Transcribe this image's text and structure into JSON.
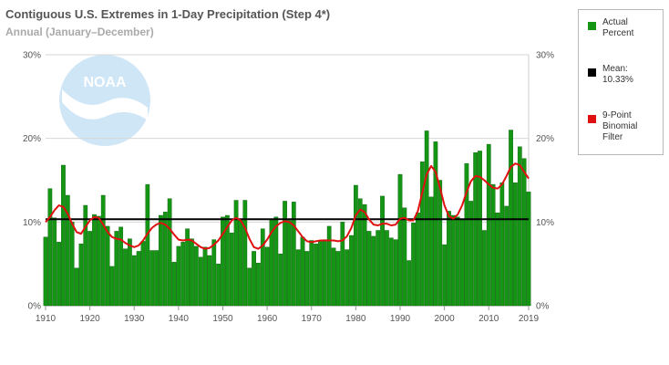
{
  "header": {
    "title": "Contiguous U.S. Extremes in 1-Day Precipitation (Step 4*)",
    "subtitle": "Annual (January–December)"
  },
  "logo_text": "NOAA",
  "legend": {
    "actual_label": "Actual\nPercent",
    "mean_label": "Mean:\n10.33%",
    "filter_label": "9-Point\nBinomial\nFilter"
  },
  "colors": {
    "bar": "#149614",
    "bar_stroke": "#0b5c0b",
    "mean": "#000000",
    "filter": "#e01010",
    "grid": "#d7d7d7"
  },
  "chart_data": {
    "type": "bar",
    "x_start": 1910,
    "x_end": 2019,
    "x_tick_labels": [
      "1910",
      "1920",
      "1930",
      "1940",
      "1950",
      "1960",
      "1970",
      "1980",
      "1990",
      "2000",
      "2010",
      "2019"
    ],
    "y_tick_labels": [
      "0%",
      "10%",
      "20%",
      "30%"
    ],
    "ylim": [
      0,
      30
    ],
    "grid": true,
    "legend_position": "right",
    "series": [
      {
        "name": "Actual Percent",
        "type": "bar",
        "values": [
          8.2,
          14.0,
          10.5,
          7.6,
          16.8,
          13.2,
          10.0,
          4.5,
          7.4,
          12.0,
          8.9,
          10.9,
          10.7,
          13.2,
          9.5,
          4.7,
          8.9,
          9.4,
          6.8,
          8.0,
          6.0,
          6.5,
          7.7,
          14.5,
          6.6,
          6.6,
          10.8,
          11.2,
          12.8,
          5.2,
          7.1,
          7.6,
          9.2,
          8.0,
          7.1,
          5.8,
          7.0,
          6.0,
          7.9,
          5.0,
          10.6,
          10.8,
          8.7,
          12.6,
          10.4,
          12.6,
          4.5,
          6.5,
          5.1,
          9.2,
          7.0,
          10.3,
          10.6,
          6.2,
          12.5,
          10.2,
          12.4,
          6.7,
          8.2,
          6.5,
          7.8,
          7.4,
          7.8,
          7.9,
          9.5,
          6.9,
          6.5,
          10.0,
          6.7,
          8.4,
          14.4,
          12.8,
          12.1,
          8.9,
          8.3,
          9.0,
          13.1,
          9.0,
          8.1,
          7.9,
          15.7,
          11.7,
          5.4,
          9.9,
          11.1,
          17.2,
          20.9,
          13.0,
          19.6,
          15.0,
          7.3,
          11.3,
          10.8,
          10.6,
          10.3,
          17.0,
          12.5,
          18.3,
          18.5,
          9.0,
          19.3,
          14.5,
          11.1,
          14.7,
          11.9,
          21.0,
          14.7,
          19.0,
          17.6,
          13.6
        ]
      },
      {
        "name": "Mean",
        "type": "line",
        "value": 10.33
      },
      {
        "name": "9-Point Binomial Filter",
        "type": "line",
        "values": [
          10.0,
          10.6,
          11.4,
          12.0,
          11.8,
          11.0,
          9.8,
          8.8,
          8.6,
          9.4,
          10.2,
          10.6,
          10.5,
          9.7,
          8.8,
          8.2,
          8.0,
          7.9,
          7.5,
          7.2,
          7.0,
          7.2,
          7.8,
          8.6,
          9.3,
          9.7,
          9.9,
          9.7,
          9.2,
          8.5,
          7.9,
          7.8,
          7.9,
          7.8,
          7.4,
          7.0,
          6.8,
          6.9,
          7.3,
          7.8,
          8.6,
          9.4,
          10.2,
          10.5,
          10.2,
          9.3,
          8.0,
          7.0,
          6.8,
          7.2,
          7.9,
          8.8,
          9.5,
          9.9,
          10.1,
          10.0,
          9.6,
          8.9,
          8.2,
          7.7,
          7.6,
          7.7,
          7.8,
          7.8,
          7.8,
          7.8,
          7.7,
          7.8,
          8.3,
          9.3,
          10.8,
          11.5,
          11.2,
          10.3,
          9.7,
          9.6,
          9.8,
          9.8,
          9.6,
          9.7,
          10.4,
          10.5,
          10.2,
          10.2,
          11.3,
          13.5,
          15.7,
          16.7,
          16.0,
          14.1,
          12.0,
          10.7,
          10.4,
          10.9,
          12.0,
          13.6,
          14.9,
          15.5,
          15.4,
          15.0,
          14.5,
          14.1,
          14.0,
          14.5,
          15.5,
          16.6,
          17.0,
          16.8,
          16.0,
          15.2
        ]
      }
    ]
  }
}
